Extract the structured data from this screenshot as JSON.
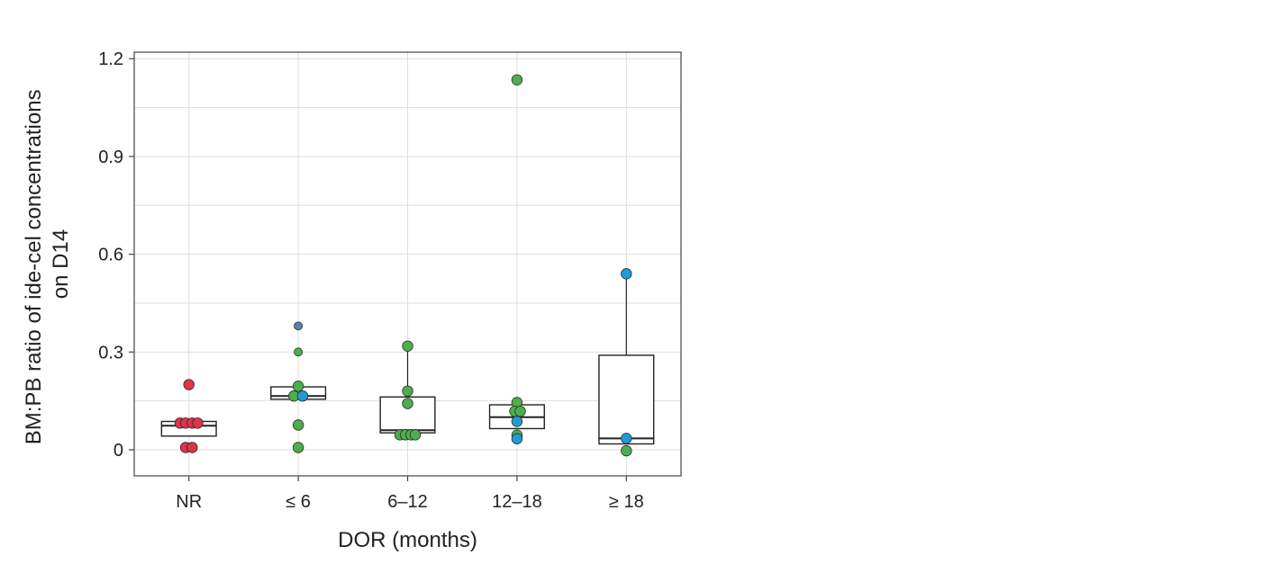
{
  "chart_data": {
    "type": "box",
    "xlabel": "DOR (months)",
    "ylabel_lines": [
      "BM:PB ratio of ide-cel concentrations",
      "on D14"
    ],
    "categories": [
      "NR",
      "≤ 6",
      "6–12",
      "12–18",
      "≥ 18"
    ],
    "ylim": [
      -0.08,
      1.22
    ],
    "yticks": [
      0,
      0.3,
      0.6,
      0.9,
      1.2
    ],
    "ytick_labels": [
      "0",
      "0.3",
      "0.6",
      "0.9",
      "1.2"
    ],
    "grid": true,
    "colors": {
      "red": "#e0324b",
      "green": "#4cae4c",
      "blue": "#1f9ad6",
      "slate": "#5b7fb8",
      "box_stroke": "#222222",
      "grid": "#dddddd",
      "frame": "#444444"
    },
    "boxes": [
      {
        "q1": 0.042,
        "median": 0.074,
        "q3": 0.087,
        "whisker_low": 0.042,
        "whisker_high": 0.087
      },
      {
        "q1": 0.155,
        "median": 0.165,
        "q3": 0.193,
        "whisker_low": 0.155,
        "whisker_high": 0.193
      },
      {
        "q1": 0.052,
        "median": 0.06,
        "q3": 0.162,
        "whisker_low": 0.052,
        "whisker_high": 0.318
      },
      {
        "q1": 0.065,
        "median": 0.1,
        "q3": 0.138,
        "whisker_low": 0.065,
        "whisker_high": 0.138
      },
      {
        "q1": 0.018,
        "median": 0.035,
        "q3": 0.29,
        "whisker_low": 0.018,
        "whisker_high": 0.54
      }
    ],
    "points": [
      {
        "category": 0,
        "y": 0.2,
        "color": "red"
      },
      {
        "category": 0,
        "y": 0.082,
        "color": "red",
        "jitter": -0.08
      },
      {
        "category": 0,
        "y": 0.082,
        "color": "red",
        "jitter": -0.03
      },
      {
        "category": 0,
        "y": 0.082,
        "color": "red",
        "jitter": 0.03
      },
      {
        "category": 0,
        "y": 0.082,
        "color": "red",
        "jitter": 0.08
      },
      {
        "category": 0,
        "y": 0.007,
        "color": "red",
        "jitter": -0.03
      },
      {
        "category": 0,
        "y": 0.007,
        "color": "red",
        "jitter": 0.03
      },
      {
        "category": 1,
        "y": 0.38,
        "color": "slate",
        "small": true
      },
      {
        "category": 1,
        "y": 0.3,
        "color": "green",
        "small": true
      },
      {
        "category": 1,
        "y": 0.195,
        "color": "green"
      },
      {
        "category": 1,
        "y": 0.165,
        "color": "green",
        "jitter": -0.04
      },
      {
        "category": 1,
        "y": 0.165,
        "color": "blue",
        "jitter": 0.04
      },
      {
        "category": 1,
        "y": 0.076,
        "color": "green"
      },
      {
        "category": 1,
        "y": 0.007,
        "color": "green"
      },
      {
        "category": 2,
        "y": 0.318,
        "color": "green"
      },
      {
        "category": 2,
        "y": 0.18,
        "color": "green"
      },
      {
        "category": 2,
        "y": 0.142,
        "color": "green"
      },
      {
        "category": 2,
        "y": 0.046,
        "color": "green",
        "jitter": -0.07
      },
      {
        "category": 2,
        "y": 0.046,
        "color": "green",
        "jitter": -0.02
      },
      {
        "category": 2,
        "y": 0.046,
        "color": "green",
        "jitter": 0.03
      },
      {
        "category": 2,
        "y": 0.046,
        "color": "green",
        "jitter": 0.07
      },
      {
        "category": 3,
        "y": 1.135,
        "color": "green"
      },
      {
        "category": 3,
        "y": 0.145,
        "color": "green"
      },
      {
        "category": 3,
        "y": 0.118,
        "color": "green",
        "jitter": -0.02
      },
      {
        "category": 3,
        "y": 0.118,
        "color": "green",
        "jitter": 0.03
      },
      {
        "category": 3,
        "y": 0.087,
        "color": "blue"
      },
      {
        "category": 3,
        "y": 0.045,
        "color": "green"
      },
      {
        "category": 3,
        "y": 0.034,
        "color": "blue"
      },
      {
        "category": 4,
        "y": 0.54,
        "color": "blue"
      },
      {
        "category": 4,
        "y": 0.035,
        "color": "blue"
      },
      {
        "category": 4,
        "y": -0.003,
        "color": "green"
      }
    ]
  }
}
